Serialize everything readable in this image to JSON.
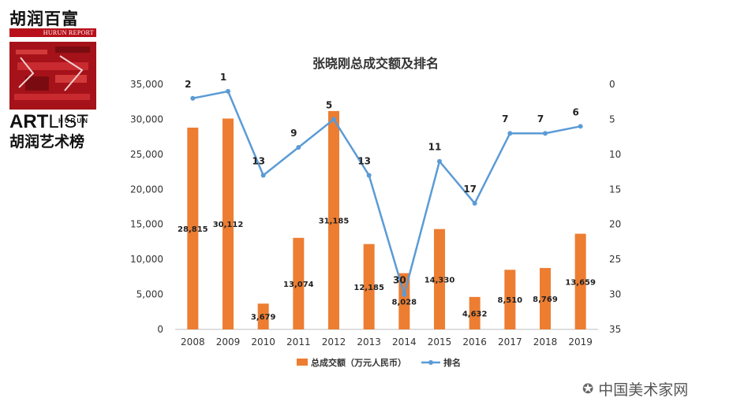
{
  "logo": {
    "top_text": "胡润百富",
    "report_text": "HURUN REPORT",
    "art_text": "ART",
    "list_text": "LIST",
    "small_text": "HURUN",
    "bottom_text": "胡润艺术榜"
  },
  "watermark": {
    "text": "中国美术家网",
    "icon": "wechat-icon"
  },
  "chart_data": {
    "type": "bar+line",
    "title": "张晓刚总成交额及排名",
    "categories": [
      "2008",
      "2009",
      "2010",
      "2011",
      "2012",
      "2013",
      "2014",
      "2015",
      "2016",
      "2017",
      "2018",
      "2019"
    ],
    "series": [
      {
        "name": "总成交额（万元人民币）",
        "type": "bar",
        "axis": "left",
        "color": "#ed7d31",
        "values": [
          28815,
          30112,
          3679,
          13074,
          31185,
          12185,
          8028,
          14330,
          4632,
          8510,
          8769,
          13659
        ],
        "labels": [
          "28,815",
          "30,112",
          "3,679",
          "13,074",
          "31,185",
          "12,185",
          "8,028",
          "14,330",
          "4,632",
          "8,510",
          "8,769",
          "13,659"
        ]
      },
      {
        "name": "排名",
        "type": "line",
        "axis": "right",
        "color": "#5b9bd5",
        "values": [
          2,
          1,
          13,
          9,
          5,
          13,
          30,
          11,
          17,
          7,
          7,
          6
        ],
        "labels": [
          "2",
          "1",
          "13",
          "9",
          "5",
          "13",
          "30",
          "11",
          "17",
          "7",
          "7",
          "6"
        ]
      }
    ],
    "y_left": {
      "min": 0,
      "max": 35000,
      "ticks": [
        "0",
        "5,000",
        "10,000",
        "15,000",
        "20,000",
        "25,000",
        "30,000",
        "35,000"
      ],
      "tick_values": [
        0,
        5000,
        10000,
        15000,
        20000,
        25000,
        30000,
        35000
      ]
    },
    "y_right": {
      "min": 0,
      "max": 35,
      "reversed": true,
      "ticks": [
        "0",
        "5",
        "10",
        "15",
        "20",
        "25",
        "30",
        "35"
      ],
      "tick_values": [
        0,
        5,
        10,
        15,
        20,
        25,
        30,
        35
      ]
    },
    "legend_position": "bottom",
    "grid": false
  }
}
